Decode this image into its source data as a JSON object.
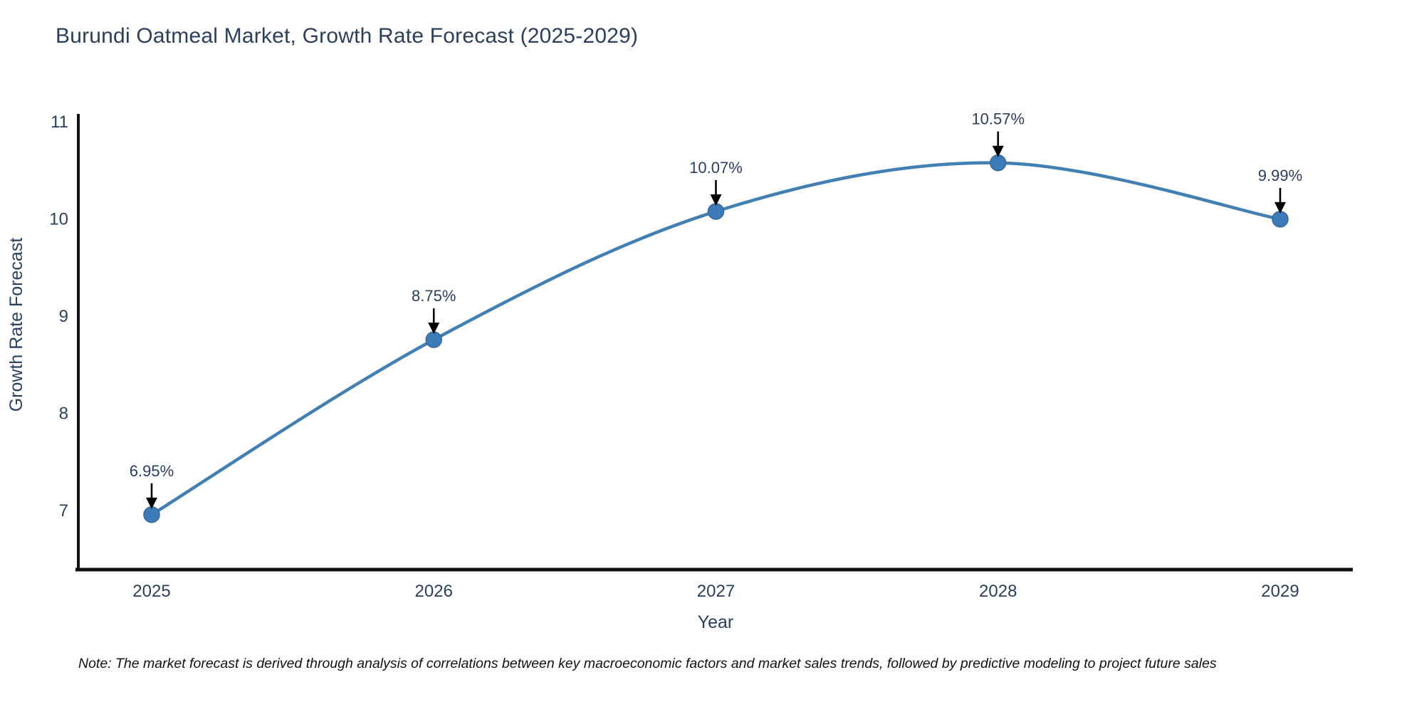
{
  "page": {
    "background": "#ffffff"
  },
  "chart": {
    "title": "Burundi Oatmeal Market, Growth Rate Forecast (2025-2029)",
    "note": "Note: The market forecast is derived through analysis of correlations between key macroeconomic factors and market sales trends, followed by predictive modeling to project future sales",
    "colors": {
      "line": "#4280b4",
      "marker_fill": "#3d7ab8",
      "marker_edge": "#36699c",
      "axis_line": "#111111",
      "tick_text": "#2a3f5f",
      "annotation_text": "#2a3f5f",
      "annotation_arrow": "#000000"
    }
  },
  "chart_data": {
    "type": "line",
    "title": "Burundi Oatmeal Market, Growth Rate Forecast (2025-2029)",
    "xlabel": "Year",
    "ylabel": "Growth Rate Forecast",
    "x": [
      2025,
      2026,
      2027,
      2028,
      2029
    ],
    "y": [
      6.95,
      8.75,
      10.07,
      10.57,
      9.99
    ],
    "point_labels": [
      "6.95%",
      "8.75%",
      "10.07%",
      "10.57%",
      "9.99%"
    ],
    "xticks": [
      "2025",
      "2026",
      "2027",
      "2028",
      "2029"
    ],
    "yticks": [
      7,
      8,
      9,
      10,
      11
    ],
    "xlim": [
      2024.74,
      2029.26
    ],
    "ylim": [
      6.38,
      11.07
    ],
    "line_shape": "spline",
    "grid": false,
    "legend": false
  }
}
